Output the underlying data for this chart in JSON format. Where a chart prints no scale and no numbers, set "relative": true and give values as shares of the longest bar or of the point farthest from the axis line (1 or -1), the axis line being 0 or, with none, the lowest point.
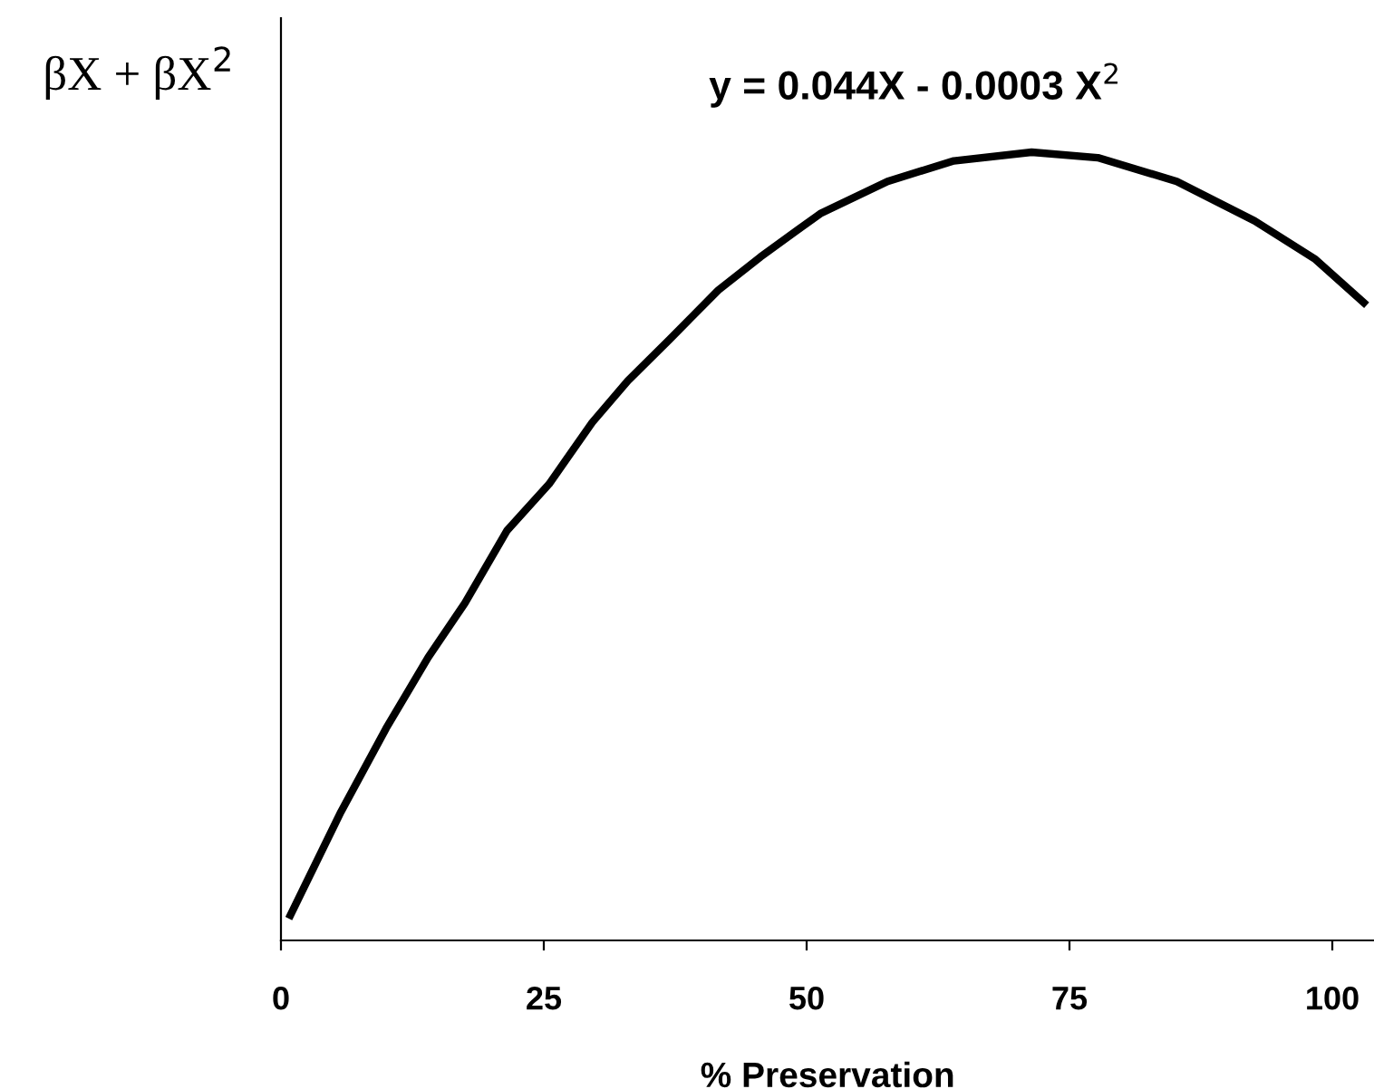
{
  "chart_data": {
    "type": "line",
    "relative": true,
    "xlabel": "% Preservation",
    "ylabel": "βX + βX$^{2}$",
    "annotations": [
      "y = 0.044X - 0.0003 X$^{2}$"
    ],
    "xlim": [
      0,
      104
    ],
    "xticks": [
      0,
      25,
      50,
      75,
      100
    ],
    "grid": false,
    "legend": false,
    "marker": "none",
    "line_style": "solid",
    "series": [
      {
        "color": "#000000",
        "x": [
          0.9,
          5.7,
          10,
          14,
          17.5,
          21.5,
          25.5,
          29.6,
          33,
          37,
          41.6,
          45.6,
          49.1,
          51.3,
          57.7,
          64,
          71.4,
          77.7,
          85.2,
          92.6,
          98.4,
          103
        ],
        "values": [
          0.032,
          0.163,
          0.269,
          0.359,
          0.428,
          0.52,
          0.579,
          0.657,
          0.71,
          0.763,
          0.825,
          0.867,
          0.901,
          0.922,
          0.963,
          0.989,
          1,
          0.993,
          0.963,
          0.913,
          0.864,
          0.809
        ]
      }
    ]
  }
}
